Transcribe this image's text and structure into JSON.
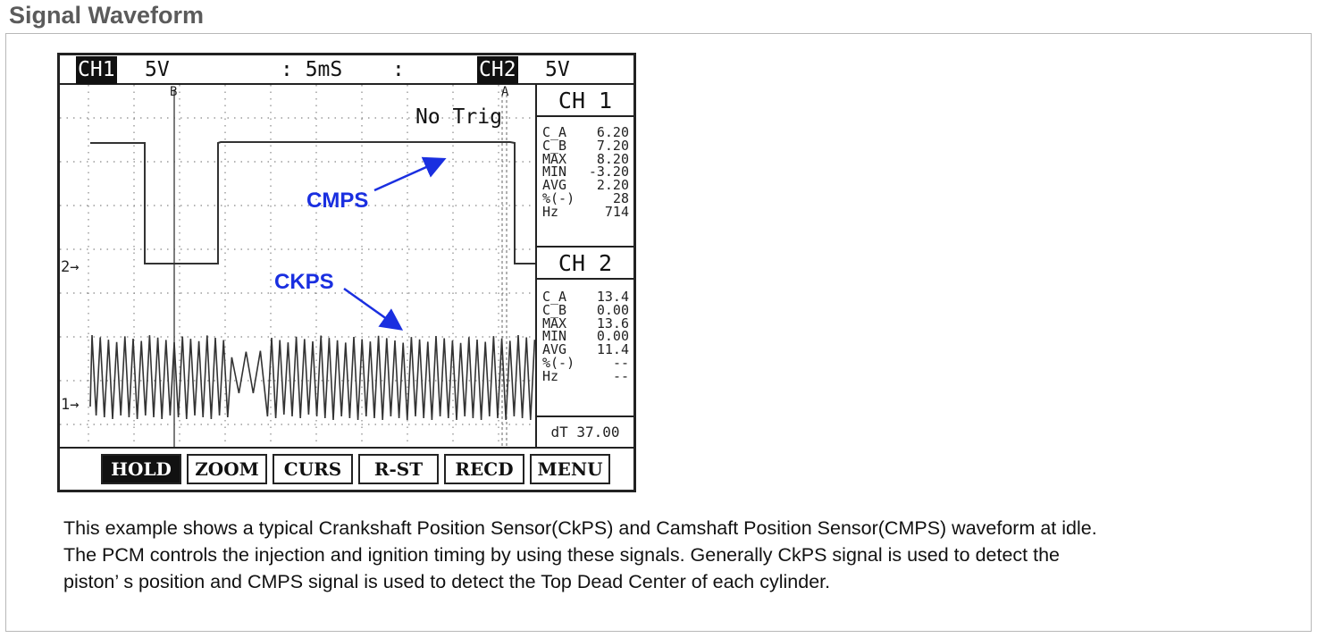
{
  "page_title": "Signal Waveform",
  "scope": {
    "topbar": {
      "ch1_label": "CH1",
      "ch1_scale": "5V",
      "timebase": ": 5mS",
      "colon": ":",
      "ch2_label": "CH2",
      "ch2_scale": "5V"
    },
    "plot": {
      "trigger_status": "No Trig",
      "cursor_a_label": "A",
      "cursor_b_label": "B",
      "ch2_marker": "2→",
      "ch1_marker": "1→",
      "annotations": {
        "cmps": "CMPS",
        "ckps": "CKPS"
      },
      "arrow_color": "#1a2fe0"
    },
    "side_panel": {
      "ch1": {
        "title": "CH 1",
        "stats": [
          {
            "label": "C_A",
            "value": "6.20"
          },
          {
            "label": "C_B",
            "value": "7.20"
          },
          {
            "label": "MAX",
            "value": "8.20"
          },
          {
            "label": "MIN",
            "value": "-3.20"
          },
          {
            "label": "AVG",
            "value": "2.20"
          },
          {
            "label": "%(-)",
            "value": "28"
          },
          {
            "label": "Hz",
            "value": "714"
          }
        ]
      },
      "ch2": {
        "title": "CH 2",
        "stats": [
          {
            "label": "C_A",
            "value": "13.4"
          },
          {
            "label": "C_B",
            "value": "0.00"
          },
          {
            "label": "MAX",
            "value": "13.6"
          },
          {
            "label": "MIN",
            "value": "0.00"
          },
          {
            "label": "AVG",
            "value": "11.4"
          },
          {
            "label": "%(-)",
            "value": "--"
          },
          {
            "label": "Hz",
            "value": "--"
          }
        ]
      },
      "dt": "dT 37.00"
    },
    "softkeys": [
      "HOLD",
      "ZOOM",
      "CURS",
      "R-ST",
      "RECD",
      "MENU"
    ],
    "active_softkey": "HOLD"
  },
  "caption": [
    "This example shows a typical Crankshaft Position Sensor(CkPS) and Camshaft Position Sensor(CMPS) waveform at idle.",
    "The PCM controls the injection and ignition timing by using these signals.  Generally CkPS signal is used to detect the",
    "piston’ s position and CMPS signal is used to detect the Top Dead Center of each cylinder."
  ]
}
